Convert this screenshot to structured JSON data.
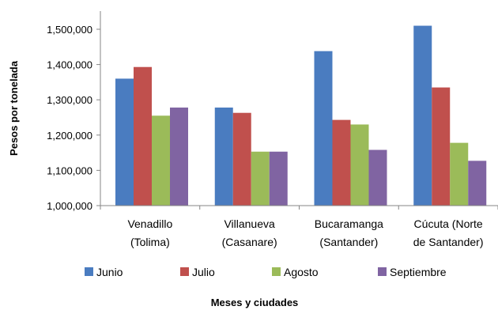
{
  "chart_data": {
    "type": "bar",
    "title": "",
    "xlabel": "Meses y ciudades",
    "ylabel": "Pesos por tonelada",
    "ylim": [
      1000000,
      1500000
    ],
    "yticks": [
      "1,000,000",
      "1,100,000",
      "1,200,000",
      "1,300,000",
      "1,400,000",
      "1,500,000"
    ],
    "ytick_values": [
      1000000,
      1100000,
      1200000,
      1300000,
      1400000,
      1500000
    ],
    "grid": false,
    "legend_position": "bottom",
    "categories": [
      [
        "Venadillo",
        "(Tolima)"
      ],
      [
        "Villanueva",
        "(Casanare)"
      ],
      [
        "Bucaramanga",
        "(Santander)"
      ],
      [
        "Cúcuta (Norte",
        "de Santander)"
      ]
    ],
    "series": [
      {
        "name": "Junio",
        "color": "#4A7CC0",
        "values": [
          1360000,
          1278000,
          1438000,
          1510000
        ]
      },
      {
        "name": "Julio",
        "color": "#C0504D",
        "values": [
          1393000,
          1263000,
          1243000,
          1335000
        ]
      },
      {
        "name": "Agosto",
        "color": "#9BBB59",
        "values": [
          1255000,
          1153000,
          1230000,
          1178000
        ]
      },
      {
        "name": "Septiembre",
        "color": "#8064A2",
        "values": [
          1278000,
          1153000,
          1158000,
          1127000
        ]
      }
    ]
  }
}
